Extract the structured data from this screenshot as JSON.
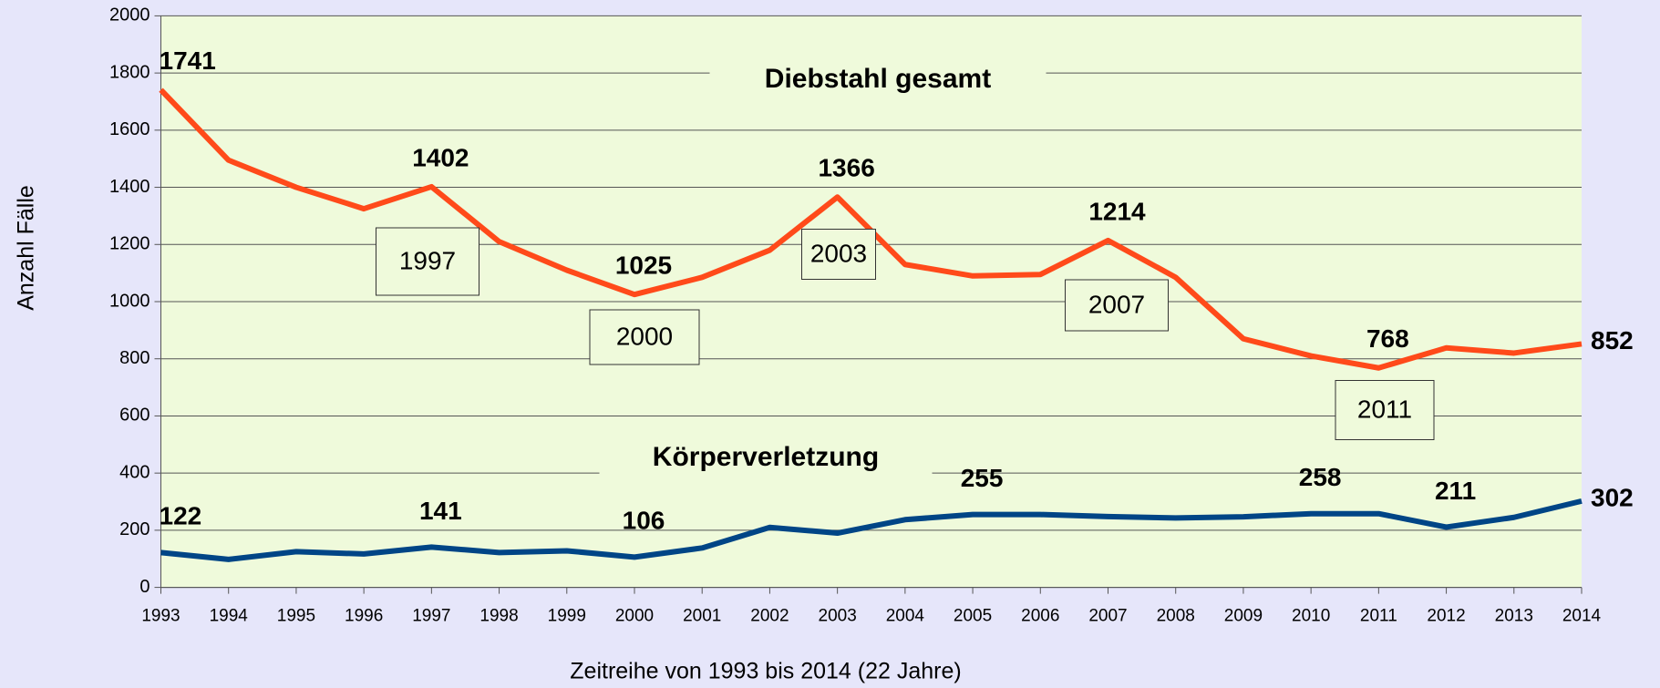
{
  "chart_data": {
    "type": "line",
    "categories": [
      "1993",
      "1994",
      "1995",
      "1996",
      "1997",
      "1998",
      "1999",
      "2000",
      "2001",
      "2002",
      "2003",
      "2004",
      "2005",
      "2006",
      "2007",
      "2008",
      "2009",
      "2010",
      "2011",
      "2012",
      "2013",
      "2014"
    ],
    "series": [
      {
        "name": "Diebstahl gesamt",
        "color": "#ff4a1a",
        "label_color": "#228b22",
        "values": [
          1741,
          1495,
          1400,
          1325,
          1402,
          1210,
          1110,
          1025,
          1085,
          1180,
          1366,
          1130,
          1090,
          1095,
          1214,
          1085,
          870,
          810,
          768,
          838,
          820,
          852
        ],
        "value_labels": [
          "1741",
          null,
          null,
          null,
          "1402",
          null,
          null,
          "1025",
          null,
          null,
          "1366",
          null,
          null,
          null,
          "1214",
          null,
          null,
          null,
          "768",
          null,
          null,
          "852"
        ]
      },
      {
        "name": "Körperverletzung",
        "color": "#004586",
        "label_color": "#dd2a0a",
        "values": [
          122,
          98,
          125,
          117,
          141,
          122,
          128,
          106,
          138,
          210,
          190,
          237,
          255,
          255,
          248,
          243,
          247,
          258,
          258,
          211,
          245,
          302
        ],
        "value_labels": [
          "122",
          null,
          null,
          null,
          "141",
          null,
          null,
          "106",
          null,
          null,
          null,
          null,
          "255",
          null,
          null,
          null,
          null,
          "258",
          null,
          "211",
          null,
          "302"
        ]
      }
    ],
    "annotations": [
      "1997",
      "2000",
      "2003",
      "2007",
      "2011"
    ],
    "ylim": [
      0,
      2000
    ],
    "yticks": [
      0,
      200,
      400,
      600,
      800,
      1000,
      1200,
      1400,
      1600,
      1800,
      2000
    ],
    "grid": true,
    "xlabel": "Zeitreihe von 1993 bis 2014 (22 Jahre)",
    "ylabel": "Anzahl Fälle"
  }
}
